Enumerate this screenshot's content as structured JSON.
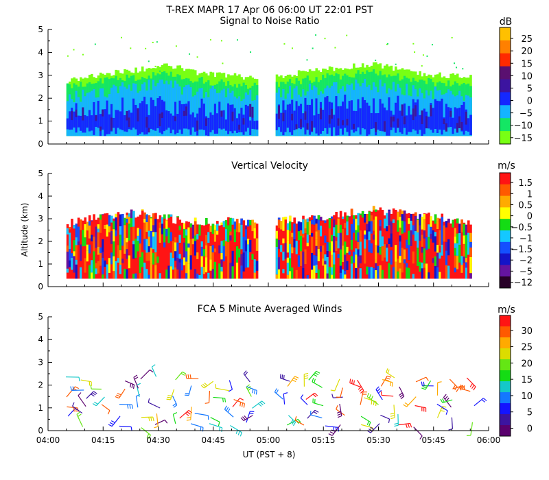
{
  "title": "T-REX  MAPR 17 Apr 06  06:00 UT  22:01  PST",
  "shared_y_label": "Altitude (km)",
  "shared_x_label": "UT  (PST + 8)",
  "x_tick_labels": [
    "04:00",
    "04:15",
    "04:30",
    "04:45",
    "05:00",
    "05:15",
    "05:30",
    "05:45",
    "06:00"
  ],
  "y_tick_labels": [
    "0",
    "1",
    "2",
    "3",
    "4",
    "5"
  ],
  "chart_data": [
    {
      "type": "heatmap",
      "title": "Signal to Noise Ratio",
      "xlabel": "",
      "ylabel": "",
      "x_range_minutes": [
        0,
        120
      ],
      "ylim": [
        0,
        5
      ],
      "data_gap_minutes": [
        57,
        62
      ],
      "data_columns": [
        {
          "start_min": 5,
          "end_min": 57
        },
        {
          "start_min": 62,
          "end_min": 115
        }
      ],
      "colorbar": {
        "units": "dB",
        "labels": [
          "25",
          "20",
          "15",
          "10",
          "5",
          "0",
          "−5",
          "−10",
          "−15"
        ],
        "colors": [
          "#ffc000",
          "#ff8000",
          "#ff2a00",
          "#5a1070",
          "#3c14a0",
          "#1428ff",
          "#14b4ff",
          "#14e664",
          "#78ff14"
        ]
      },
      "profile": [
        {
          "t": 5,
          "top": 2.75,
          "green": 2.5,
          "cyan": 2.0,
          "blue": 1.2
        },
        {
          "t": 15,
          "top": 3.05,
          "green": 2.75,
          "cyan": 2.3,
          "blue": 1.35
        },
        {
          "t": 25,
          "top": 3.25,
          "green": 2.95,
          "cyan": 2.5,
          "blue": 1.45
        },
        {
          "t": 33,
          "top": 3.45,
          "green": 3.1,
          "cyan": 2.55,
          "blue": 1.5
        },
        {
          "t": 40,
          "top": 3.1,
          "green": 2.8,
          "cyan": 2.3,
          "blue": 1.4
        },
        {
          "t": 50,
          "top": 3.0,
          "green": 2.6,
          "cyan": 2.2,
          "blue": 1.3
        },
        {
          "t": 57,
          "top": 2.8,
          "green": 2.5,
          "cyan": 2.0,
          "blue": 1.25
        },
        {
          "t": 62,
          "top": 2.95,
          "green": 2.65,
          "cyan": 2.2,
          "blue": 1.4
        },
        {
          "t": 72,
          "top": 3.2,
          "green": 2.85,
          "cyan": 2.35,
          "blue": 1.5
        },
        {
          "t": 88,
          "top": 3.5,
          "green": 3.15,
          "cyan": 2.6,
          "blue": 1.6
        },
        {
          "t": 100,
          "top": 3.1,
          "green": 2.75,
          "cyan": 2.3,
          "blue": 1.45
        },
        {
          "t": 115,
          "top": 2.9,
          "green": 2.55,
          "cyan": 2.1,
          "blue": 1.35
        }
      ]
    },
    {
      "type": "heatmap",
      "title": "Vertical Velocity",
      "xlabel": "",
      "ylabel": "Altitude (km)",
      "x_range_minutes": [
        0,
        120
      ],
      "ylim": [
        0,
        5
      ],
      "data_gap_minutes": [
        57,
        62
      ],
      "data_columns": [
        {
          "start_min": 5,
          "end_min": 57
        },
        {
          "start_min": 62,
          "end_min": 115
        }
      ],
      "colorbar": {
        "units": "m/s",
        "labels": [
          "1.5",
          "1",
          "0.5",
          "0",
          "−0.5",
          "−1",
          "−1.5",
          "−2",
          "−5",
          "−12"
        ],
        "colors": [
          "#ff1414",
          "#ff5a00",
          "#ffaa00",
          "#ffff00",
          "#14dc14",
          "#14c8ff",
          "#1450ff",
          "#1414c8",
          "#6414a0",
          "#280028"
        ]
      },
      "profile": [
        {
          "t": 5,
          "top": 2.8
        },
        {
          "t": 15,
          "top": 3.1
        },
        {
          "t": 25,
          "top": 3.25
        },
        {
          "t": 33,
          "top": 3.0
        },
        {
          "t": 40,
          "top": 2.85
        },
        {
          "t": 50,
          "top": 2.9
        },
        {
          "t": 57,
          "top": 2.8
        },
        {
          "t": 62,
          "top": 2.9
        },
        {
          "t": 72,
          "top": 3.05
        },
        {
          "t": 88,
          "top": 3.4
        },
        {
          "t": 100,
          "top": 3.2
        },
        {
          "t": 115,
          "top": 2.85
        }
      ]
    },
    {
      "type": "scatter",
      "title": "FCA 5 Minute Averaged Winds",
      "xlabel": "UT  (PST + 8)",
      "ylabel": "",
      "x_range_minutes": [
        0,
        120
      ],
      "ylim": [
        0,
        5
      ],
      "colorbar": {
        "units": "m/s",
        "labels": [
          "30",
          "25",
          "20",
          "15",
          "10",
          "5",
          "0"
        ],
        "colors": [
          "#ff1414",
          "#ff5a00",
          "#ffaa00",
          "#dcdc00",
          "#64e614",
          "#14dc14",
          "#14c8c8",
          "#1478ff",
          "#1414ff",
          "#3c14a0",
          "#5a006e"
        ]
      },
      "barb_times_minutes": [
        5,
        10,
        15,
        20,
        25,
        30,
        35,
        40,
        45,
        50,
        55,
        60,
        65,
        70,
        75,
        80,
        85,
        90,
        95,
        100,
        105,
        110,
        115
      ],
      "barb_altitudes_km": [
        0.25,
        0.65,
        1.05,
        1.45,
        1.85,
        2.25
      ]
    }
  ]
}
